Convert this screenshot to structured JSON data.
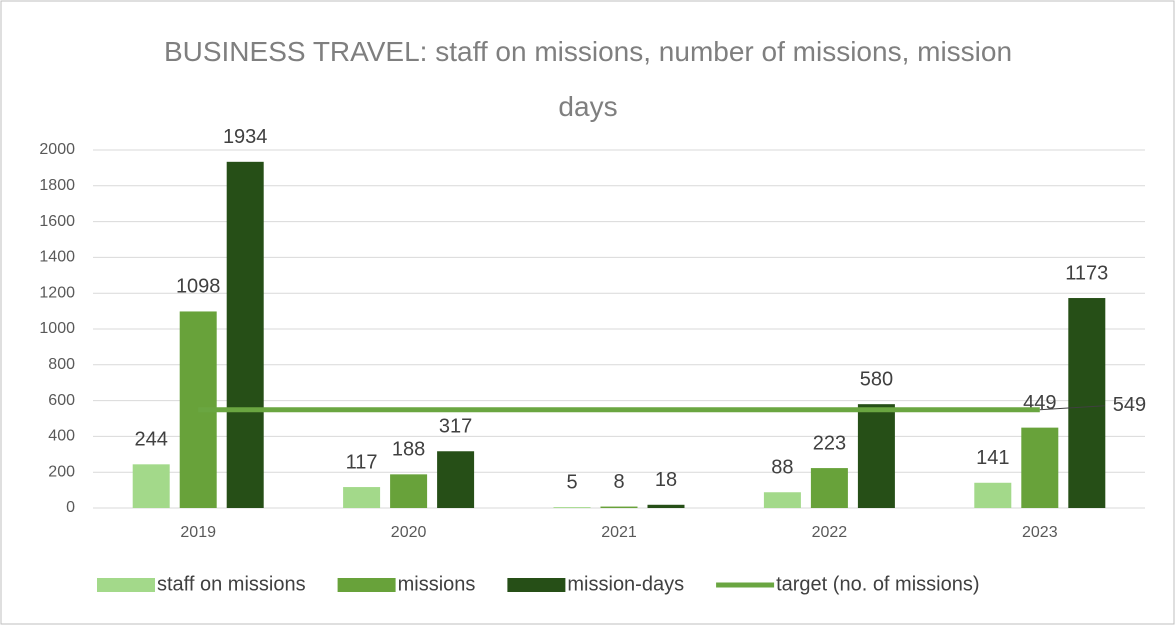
{
  "chart_data": {
    "type": "bar",
    "title": "BUSINESS TRAVEL: staff on missions, number of missions, mission days",
    "categories": [
      "2019",
      "2020",
      "2021",
      "2022",
      "2023"
    ],
    "series": [
      {
        "name": "staff on missions",
        "color": "#a3d98a",
        "values": [
          244,
          117,
          5,
          88,
          141
        ]
      },
      {
        "name": "missions",
        "color": "#68a23a",
        "values": [
          1098,
          188,
          8,
          223,
          449
        ]
      },
      {
        "name": "mission-days",
        "color": "#264f17",
        "values": [
          1934,
          317,
          18,
          580,
          1173
        ]
      },
      {
        "name": "target (no. of missions)",
        "type": "line",
        "color": "#6aa641",
        "values": [
          549,
          549,
          549,
          549,
          549
        ]
      }
    ],
    "ylim": [
      0,
      2000
    ],
    "yticks": [
      0,
      200,
      400,
      600,
      800,
      1000,
      1200,
      1400,
      1600,
      1800,
      2000
    ],
    "grid": true,
    "legend": "bottom"
  }
}
